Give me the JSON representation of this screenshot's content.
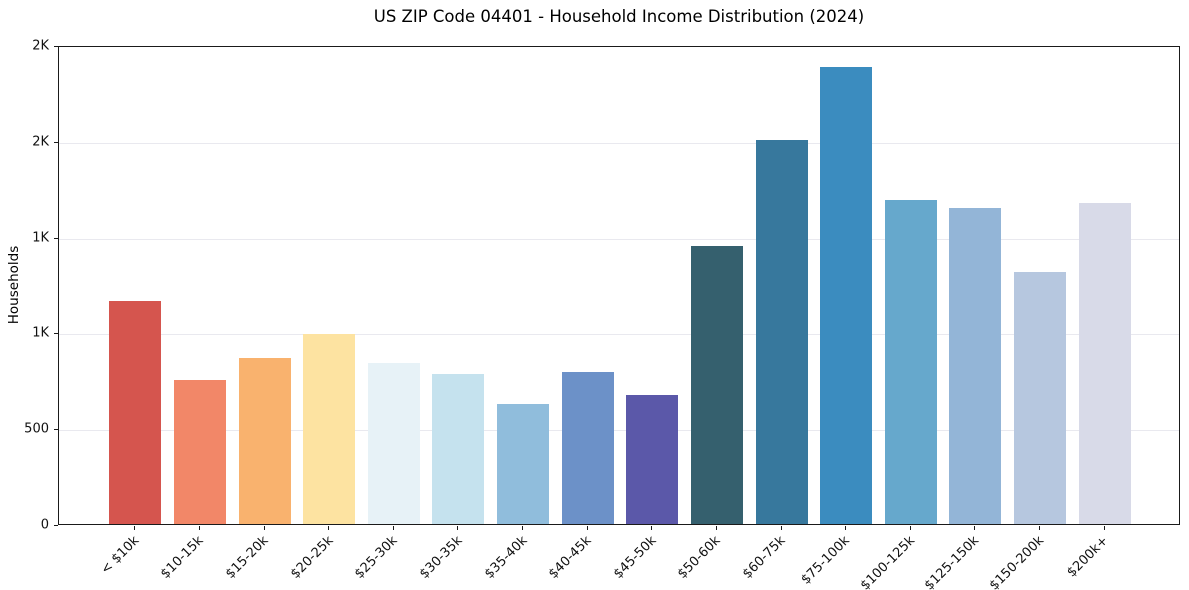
{
  "chart_data": {
    "type": "bar",
    "title": "US ZIP Code 04401 - Household Income Distribution (2024)",
    "xlabel": "",
    "ylabel": "Households",
    "categories": [
      "< $10k",
      "$10-15k",
      "$15-20k",
      "$20-25k",
      "$25-30k",
      "$30-35k",
      "$35-40k",
      "$40-45k",
      "$45-50k",
      "$50-60k",
      "$60-75k",
      "$75-100k",
      "$100-125k",
      "$125-150k",
      "$150-200k",
      "$200k+"
    ],
    "values": [
      1165,
      750,
      865,
      990,
      840,
      785,
      625,
      795,
      675,
      1450,
      2005,
      2385,
      1690,
      1650,
      1315,
      1675
    ],
    "bar_colors": [
      "#d5554e",
      "#f28768",
      "#f9b26e",
      "#fde3a1",
      "#e7f2f7",
      "#c5e2ee",
      "#90bddc",
      "#6c91c8",
      "#5b58a9",
      "#35606e",
      "#37789d",
      "#3b8cbf",
      "#66a8cc",
      "#93b5d7",
      "#b6c7df",
      "#d8dae8"
    ],
    "ylim": [
      0,
      2500
    ],
    "yticks": [
      {
        "value": 0,
        "label": "0"
      },
      {
        "value": 500,
        "label": "500"
      },
      {
        "value": 1000,
        "label": "1K"
      },
      {
        "value": 1500,
        "label": "1K"
      },
      {
        "value": 2000,
        "label": "2K"
      },
      {
        "value": 2500,
        "label": "2K"
      }
    ],
    "grid": "horizontal",
    "legend": "none",
    "x_tick_rotation_deg": 45
  },
  "style": {
    "background_color": "#ffffff",
    "grid_color": "#e9e9ef",
    "spine_color": "#1a1a1a",
    "text_color": "#000000"
  }
}
